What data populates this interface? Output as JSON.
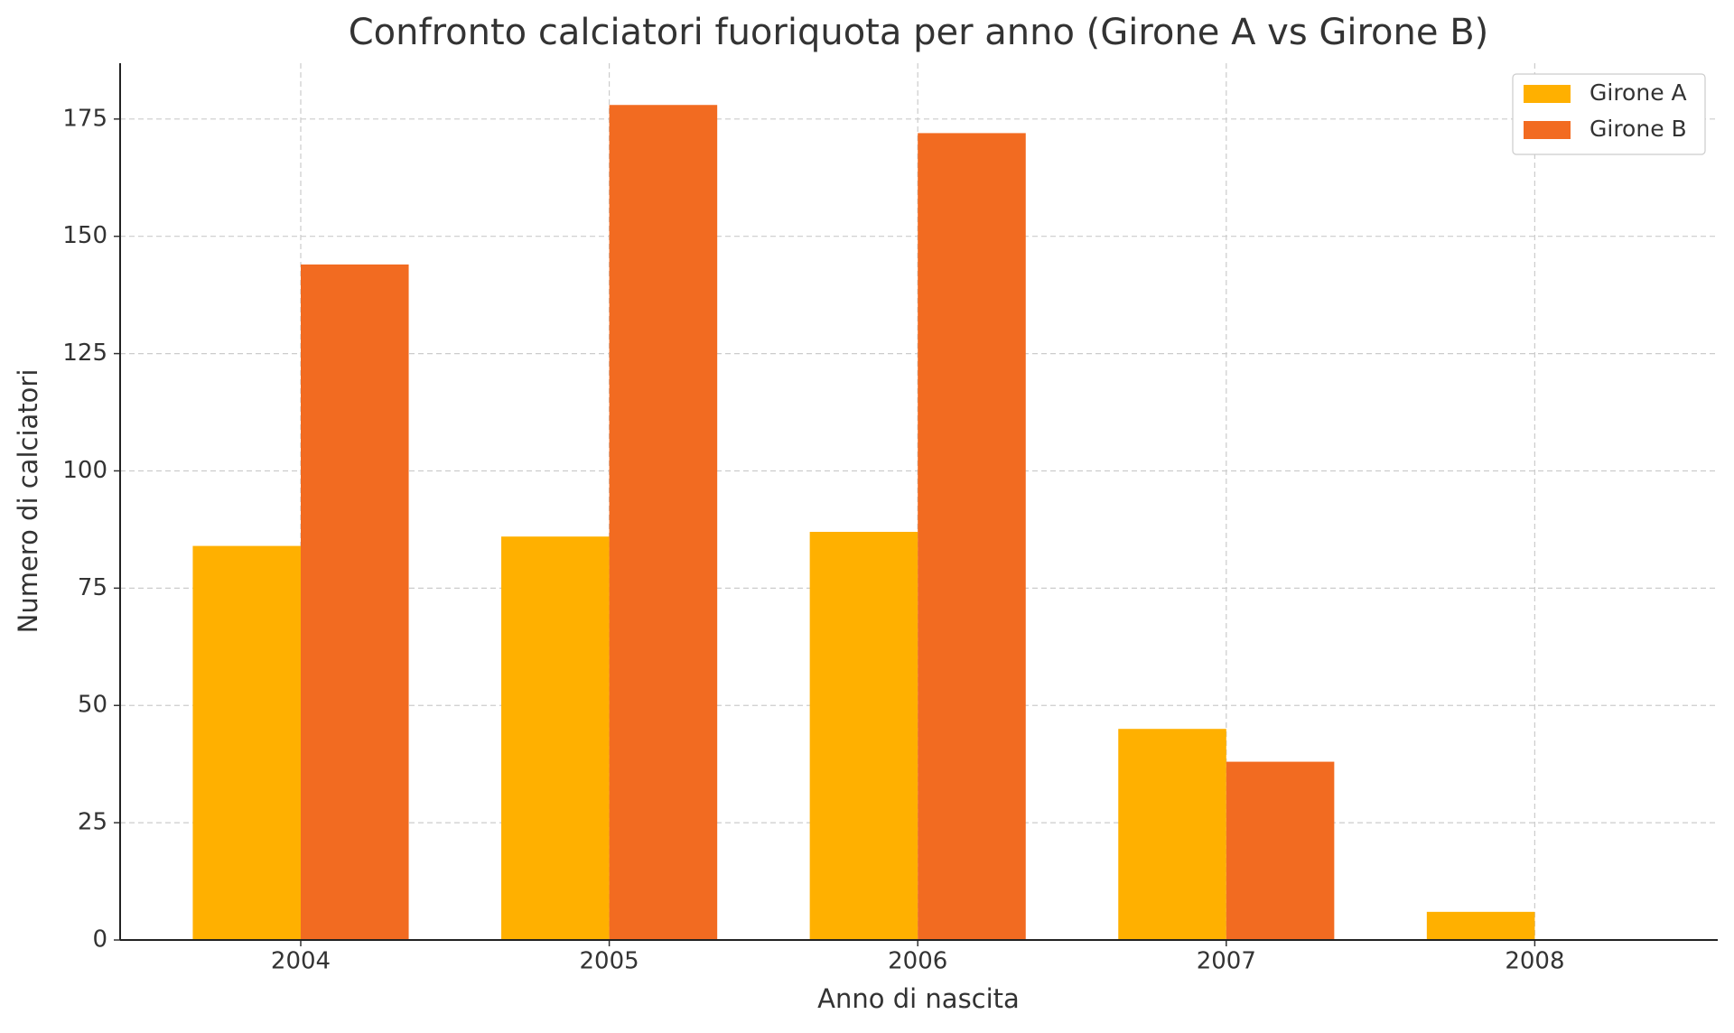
{
  "chart_data": {
    "type": "bar",
    "title": "Confronto calciatori fuoriquota per anno (Girone A vs Girone B)",
    "x_label": "Anno di nascita",
    "y_label": "Numero di calciatori",
    "categories": [
      "2004",
      "2005",
      "2006",
      "2007",
      "2008"
    ],
    "series": [
      {
        "name": "Girone A",
        "color": "#ffb000",
        "values": [
          84,
          86,
          87,
          45,
          6
        ]
      },
      {
        "name": "Girone B",
        "color": "#f26b21",
        "values": [
          144,
          178,
          172,
          38,
          0
        ]
      }
    ],
    "ylim": [
      0,
      186.9
    ],
    "yticks": [
      0,
      25,
      50,
      75,
      100,
      125,
      150,
      175
    ],
    "grid": true,
    "legend": "upper right"
  }
}
